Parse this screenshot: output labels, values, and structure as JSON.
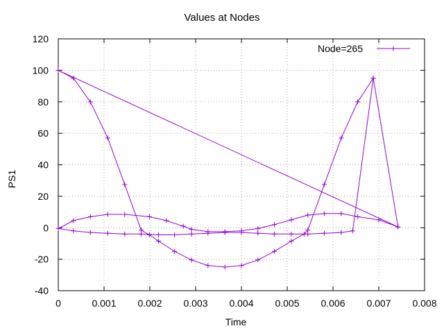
{
  "chart_data": {
    "type": "line",
    "title": "Values at Nodes",
    "xlabel": "Time",
    "ylabel": "PS1",
    "xlim": [
      0,
      0.008
    ],
    "ylim": [
      -40,
      120
    ],
    "x_ticks": [
      "0",
      "0.001",
      "0.002",
      "0.003",
      "0.004",
      "0.005",
      "0.006",
      "0.007",
      "0.008"
    ],
    "y_ticks": [
      "-40",
      "-20",
      "0",
      "20",
      "40",
      "60",
      "80",
      "100",
      "120"
    ],
    "grid": true,
    "legend_position": "top-right",
    "series": [
      {
        "name": "Node=265",
        "color": "#9400d3",
        "marker": "plus",
        "x": [
          0,
          0.00033,
          0.0007,
          0.00108,
          0.00145,
          0.00181,
          0.00199,
          0.00219,
          0.00254,
          0.00291,
          0.00327,
          0.00364,
          0.004,
          0.00436,
          0.00472,
          0.00509,
          0.00537,
          0.00545,
          0.00581,
          0.00618,
          0.00654,
          0.00688,
          0.00742,
          0.007,
          0.00654,
          0.00618,
          0.00581,
          0.00545,
          0.00509,
          0.00472,
          0.00436,
          0.004,
          0.00364,
          0.00327,
          0.00291,
          0.00273,
          0.00236,
          0.00199,
          0.00145,
          0.00108,
          0.0007,
          0.00033,
          0,
          0.00033,
          0.0007,
          0.00108,
          0.00145,
          0.00181,
          0.00219,
          0.00254,
          0.00291,
          0.00327,
          0.00364,
          0.004,
          0.00436,
          0.00472,
          0.00509,
          0.00545,
          0.00581,
          0.00618,
          0.00643,
          0.00688,
          0.00742,
          0
        ],
        "y": [
          100,
          95,
          80,
          57,
          27.5,
          -1.5,
          -4.5,
          -8.5,
          -15,
          -20.5,
          -24,
          -25,
          -24,
          -20.5,
          -15,
          -8.5,
          -4,
          -1.5,
          27.5,
          57,
          80,
          95,
          0.5,
          5,
          7,
          9,
          9,
          8,
          5,
          2,
          -0.5,
          -2,
          -2.5,
          -2.5,
          -1,
          1,
          4.5,
          7,
          8.5,
          8.5,
          7,
          4.5,
          -0.5,
          -2,
          -3,
          -3.5,
          -4,
          -4,
          -4.5,
          -4.5,
          -4,
          -3.5,
          -3,
          -3,
          -3.5,
          -4,
          -4,
          -4,
          -3.5,
          -3,
          -2,
          95,
          0.5,
          100
        ]
      }
    ]
  }
}
